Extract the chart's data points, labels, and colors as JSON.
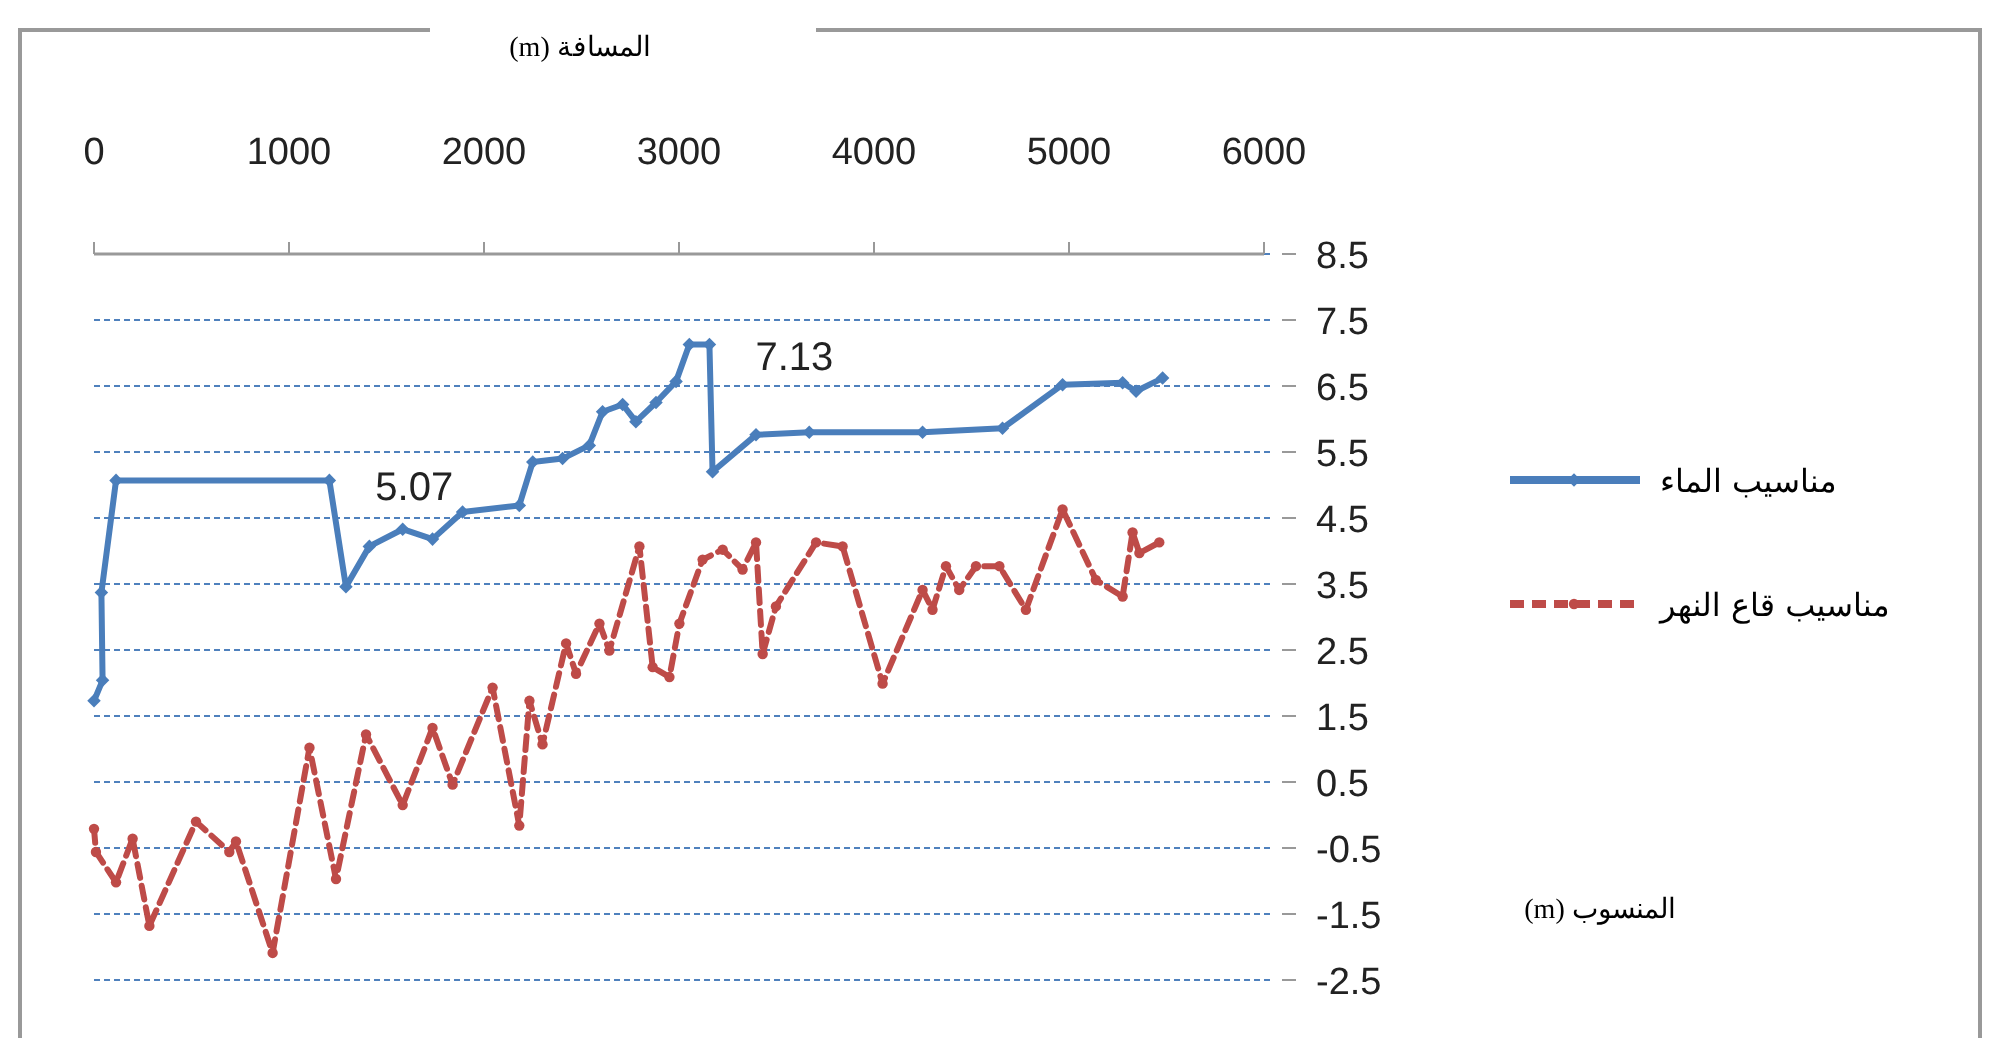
{
  "chart_data": {
    "type": "line",
    "xlabel": "المسافة (m)",
    "xlim": [
      0,
      6000
    ],
    "xticks": [
      0,
      1000,
      2000,
      3000,
      4000,
      5000,
      6000
    ],
    "ylim": [
      -2.5,
      8.5
    ],
    "yticks": [
      -2.5,
      -1.5,
      -0.5,
      0.5,
      1.5,
      2.5,
      3.5,
      4.5,
      5.5,
      6.5,
      7.5,
      8.5
    ],
    "grid": "y",
    "legend": "right",
    "series": [
      {
        "name": "مناسيب الماء",
        "color": "#4a7ebb",
        "marker": "diamond",
        "line_style": "solid",
        "x": [
          0,
          44,
          38,
          113,
          1207,
          1292,
          1412,
          1583,
          1736,
          1890,
          2181,
          2250,
          2403,
          2540,
          2608,
          2711,
          2779,
          2882,
          2985,
          3053,
          3156,
          3172,
          3395,
          3668,
          4249,
          4659,
          4967,
          5275,
          5344,
          5480
        ],
        "values": [
          1.73,
          2.04,
          3.37,
          5.07,
          5.07,
          3.46,
          4.07,
          4.33,
          4.18,
          4.59,
          4.69,
          5.35,
          5.4,
          5.6,
          6.11,
          6.22,
          5.96,
          6.25,
          6.57,
          7.13,
          7.13,
          5.2,
          5.76,
          5.8,
          5.8,
          5.86,
          6.52,
          6.55,
          6.42,
          6.62
        ]
      },
      {
        "name": "مناسيب قاع النهر",
        "color": "#be4b48",
        "marker": "circle",
        "line_style": "dashed",
        "x": [
          0,
          10,
          113,
          198,
          284,
          523,
          694,
          728,
          916,
          1105,
          1241,
          1395,
          1583,
          1736,
          1839,
          2044,
          2181,
          2233,
          2300,
          2421,
          2472,
          2592,
          2643,
          2797,
          2865,
          2951,
          3002,
          3121,
          3224,
          3326,
          3395,
          3429,
          3497,
          3703,
          3839,
          4044,
          4249,
          4300,
          4369,
          4437,
          4523,
          4643,
          4779,
          4967,
          5138,
          5275,
          5326,
          5361,
          5463
        ],
        "values": [
          -0.21,
          -0.56,
          -1.02,
          -0.36,
          -1.68,
          -0.1,
          -0.56,
          -0.4,
          -2.09,
          1.02,
          -0.97,
          1.22,
          0.15,
          1.32,
          0.46,
          1.93,
          -0.16,
          1.73,
          1.07,
          2.6,
          2.14,
          2.9,
          2.49,
          4.07,
          2.24,
          2.09,
          2.9,
          3.87,
          4.02,
          3.72,
          4.13,
          2.44,
          3.16,
          4.13,
          4.07,
          1.99,
          3.41,
          3.11,
          3.77,
          3.41,
          3.77,
          3.77,
          3.11,
          4.63,
          3.56,
          3.31,
          4.28,
          3.97,
          4.13
        ]
      }
    ],
    "annotations": [
      {
        "text": "5.07",
        "x": 1207,
        "y": 5.07
      },
      {
        "text": "7.13",
        "x": 3156,
        "y": 7.13
      },
      "المنسوب (m)"
    ]
  }
}
